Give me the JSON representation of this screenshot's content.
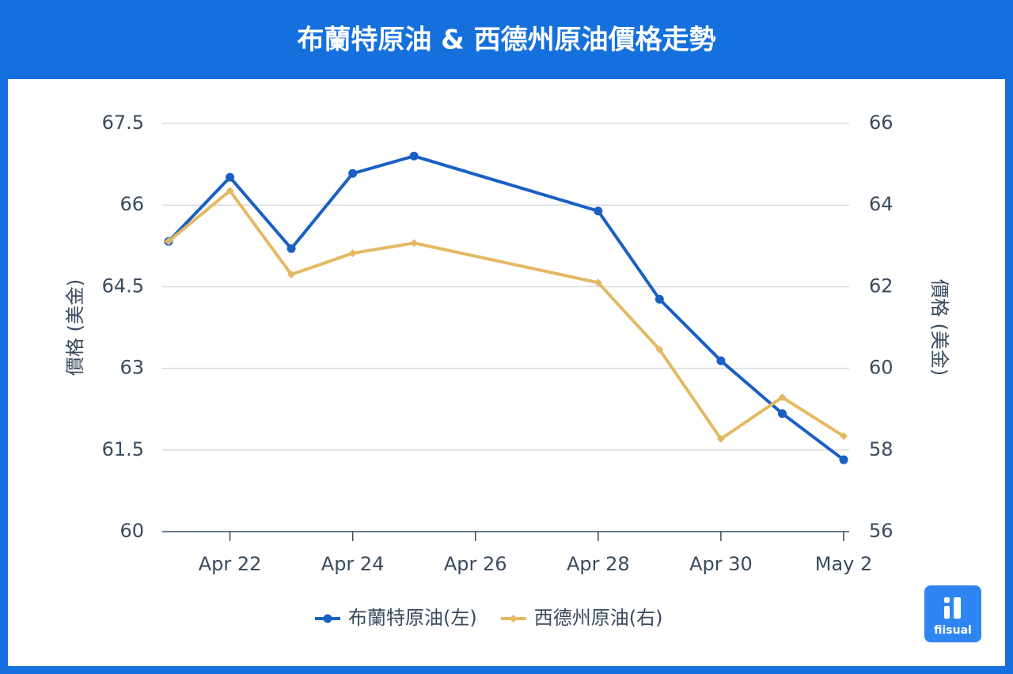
{
  "chart_data": {
    "type": "line",
    "title": "布蘭特原油 & 西德州原油價格走勢",
    "y_label": "價格 (美金)",
    "y2_label": "價格 (美金)",
    "x": [
      "Apr 21",
      "Apr 22",
      "Apr 23",
      "Apr 24",
      "Apr 25",
      "Apr 28",
      "Apr 29",
      "Apr 30",
      "May 1",
      "May 2"
    ],
    "xlim": [
      "Apr 21",
      "May 2"
    ],
    "xticks": [
      "Apr 22",
      "Apr 24",
      "Apr 26",
      "Apr 28",
      "Apr 30",
      "May 2"
    ],
    "ylim": [
      60,
      67.5
    ],
    "yticks": [
      60,
      61.5,
      63,
      64.5,
      66,
      67.5
    ],
    "y2lim": [
      56,
      66
    ],
    "y2ticks": [
      56,
      58,
      60,
      62,
      64,
      66
    ],
    "grid": true,
    "legend": "bottom",
    "series": [
      {
        "name": "布蘭特原油(左)",
        "color": "#1a5fc4",
        "marker": "circle",
        "values": [
          65.33,
          66.51,
          65.2,
          66.58,
          66.9,
          65.89,
          64.27,
          63.14,
          62.17,
          61.32
        ]
      },
      {
        "name": "西德州原油(右)",
        "color": "#e5b964",
        "marker": "diamond",
        "axis": "y2",
        "values": [
          63.11,
          64.35,
          62.3,
          62.82,
          63.07,
          62.1,
          60.46,
          58.27,
          59.29,
          58.34
        ]
      }
    ]
  },
  "logo": {
    "text": "fiisual"
  }
}
